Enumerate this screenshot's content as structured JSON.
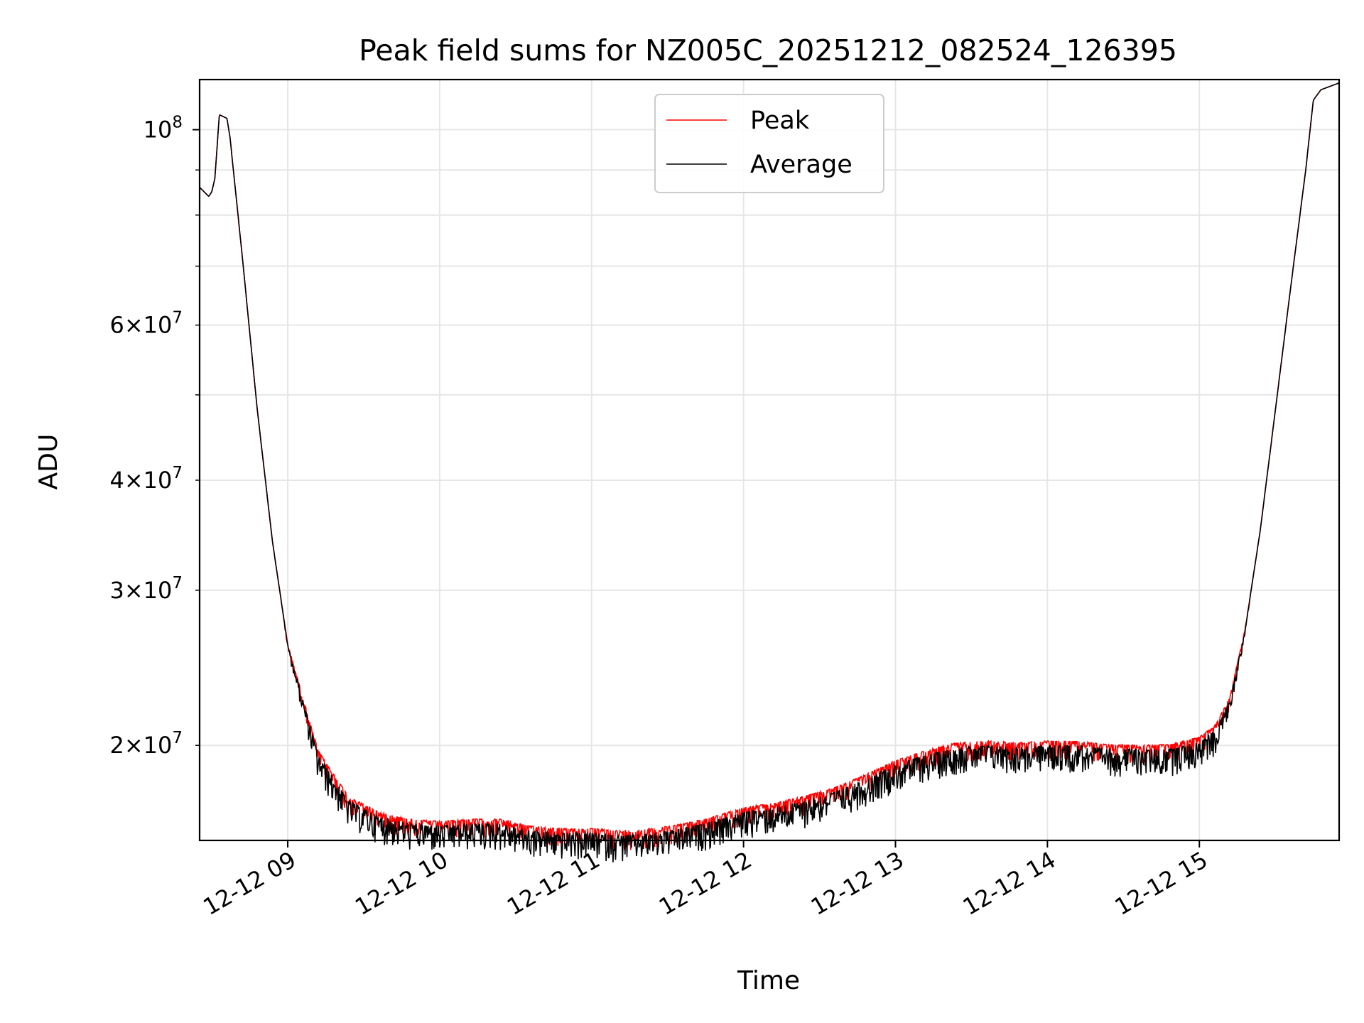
{
  "chart_data": {
    "type": "line",
    "title": "Peak field sums for NZ005C_20251212_082524_126395",
    "xlabel": "Time",
    "ylabel": "ADU",
    "yscale": "log",
    "xlim": [
      8.42,
      15.92
    ],
    "ylim": [
      15600000,
      114000000
    ],
    "grid": true,
    "legend_position": "top-center",
    "x_ticks": [
      {
        "value": 9,
        "label": "12-12 09"
      },
      {
        "value": 10,
        "label": "12-12 10"
      },
      {
        "value": 11,
        "label": "12-12 11"
      },
      {
        "value": 12,
        "label": "12-12 12"
      },
      {
        "value": 13,
        "label": "12-12 13"
      },
      {
        "value": 14,
        "label": "12-12 14"
      },
      {
        "value": 15,
        "label": "12-12 15"
      }
    ],
    "y_ticks_major": [
      {
        "value": 100000000,
        "base": "10",
        "exp": "8"
      }
    ],
    "y_ticks_minor": [
      {
        "value": 20000000,
        "mantissa": "2",
        "exp": "7"
      },
      {
        "value": 30000000,
        "mantissa": "3",
        "exp": "7"
      },
      {
        "value": 40000000,
        "mantissa": "4",
        "exp": "7"
      },
      {
        "value": 50000000,
        "mantissa": "",
        "exp": ""
      },
      {
        "value": 60000000,
        "mantissa": "6",
        "exp": "7"
      },
      {
        "value": 70000000,
        "mantissa": "",
        "exp": ""
      },
      {
        "value": 80000000,
        "mantissa": "",
        "exp": ""
      },
      {
        "value": 90000000,
        "mantissa": "",
        "exp": ""
      }
    ],
    "baseline_keypoints": {
      "x": [
        8.42,
        8.45,
        8.48,
        8.5,
        8.52,
        8.55,
        8.6,
        8.62,
        8.7,
        8.8,
        8.9,
        9.0,
        9.2,
        9.4,
        9.6,
        9.8,
        10.0,
        10.2,
        10.4,
        10.6,
        10.8,
        11.0,
        11.2,
        11.4,
        11.6,
        11.8,
        12.0,
        12.2,
        12.4,
        12.6,
        12.8,
        13.0,
        13.2,
        13.4,
        13.6,
        13.8,
        14.0,
        14.2,
        14.4,
        14.6,
        14.8,
        15.0,
        15.1,
        15.2,
        15.3,
        15.4,
        15.5,
        15.6,
        15.7,
        15.75,
        15.8,
        15.92
      ],
      "y": [
        86000000,
        85000000,
        84000000,
        85000000,
        88000000,
        104000000,
        103000000,
        98000000,
        72000000,
        48000000,
        34000000,
        26000000,
        19500000,
        17300000,
        16600000,
        16300000,
        16200000,
        16300000,
        16300000,
        16000000,
        15900000,
        15900000,
        15800000,
        15900000,
        16100000,
        16400000,
        16800000,
        17000000,
        17300000,
        17700000,
        18300000,
        19000000,
        19500000,
        19900000,
        20000000,
        19900000,
        20000000,
        20000000,
        19800000,
        19800000,
        19800000,
        20200000,
        20800000,
        22500000,
        27000000,
        35000000,
        48000000,
        66000000,
        90000000,
        108000000,
        111000000,
        113000000
      ]
    },
    "series": [
      {
        "name": "Peak",
        "color": "#ff0000",
        "noise_fraction": 0.05
      },
      {
        "name": "Average",
        "color": "#000000",
        "noise_fraction": 0.07
      }
    ]
  }
}
